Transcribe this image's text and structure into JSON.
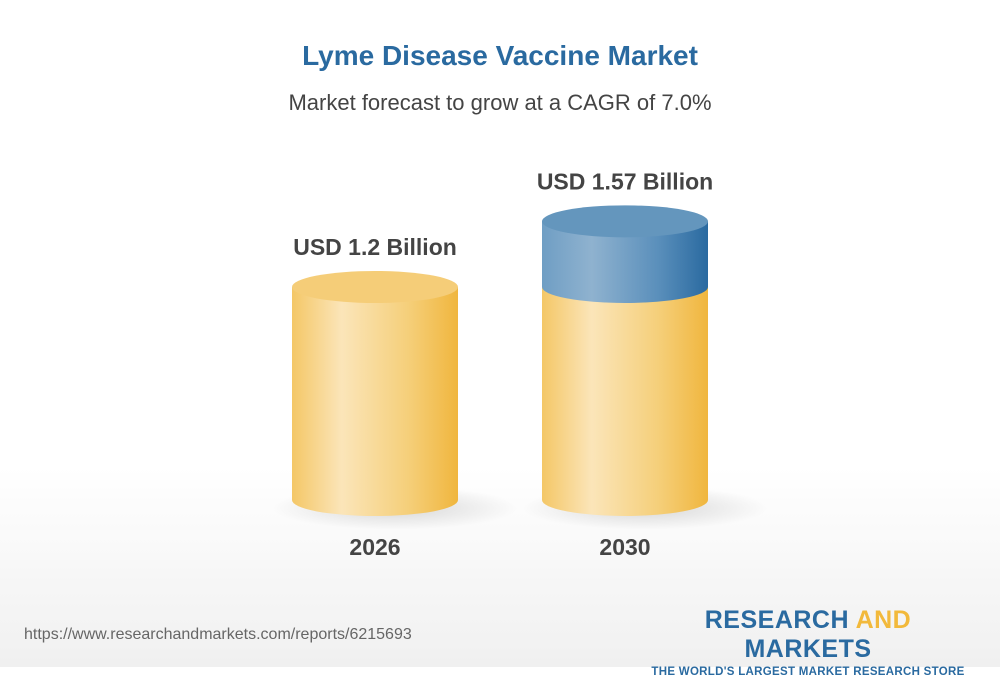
{
  "chart_data": {
    "type": "bar",
    "style": "3d-cylinder",
    "title": "Lyme Disease Vaccine Market",
    "subtitle": "Market forecast to grow at a CAGR of 7.0%",
    "categories": [
      "2026",
      "2030"
    ],
    "values": [
      1.2,
      1.57
    ],
    "unit": "USD Billion",
    "data_labels": [
      "USD 1.2 Billion",
      "USD 1.57 Billion"
    ],
    "colors": {
      "base": "#f2c04a",
      "growth": "#2a6aa0"
    }
  },
  "footer": {
    "url": "https://www.researchandmarkets.com/reports/6215693",
    "logo_part1": "RESEARCH ",
    "logo_part2": "AND",
    "logo_part3": " MARKETS",
    "logo_tagline": "THE WORLD'S LARGEST MARKET RESEARCH STORE"
  }
}
